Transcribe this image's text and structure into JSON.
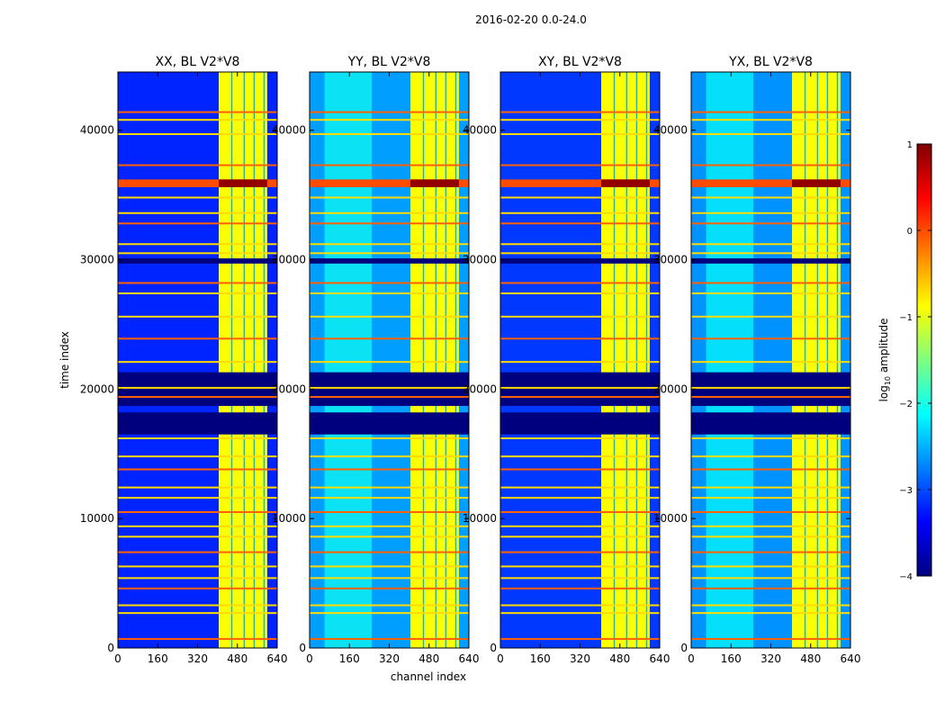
{
  "figure_title": "2016-02-20 0.0-24.0",
  "chart_data": {
    "type": "heatmap",
    "suptitle": "2016-02-20 0.0-24.0",
    "shared_xlabel": "channel index",
    "shared_ylabel": "time index",
    "xlim": [
      0,
      640
    ],
    "ylim": [
      0,
      44500
    ],
    "xticks": [
      0,
      160,
      320,
      480,
      640
    ],
    "yticks": [
      0,
      10000,
      20000,
      30000,
      40000
    ],
    "panels": [
      {
        "title": "XX, BL V2*V8",
        "pol": "XX"
      },
      {
        "title": "YY, BL V2*V8",
        "pol": "YY"
      },
      {
        "title": "XY, BL V2*V8",
        "pol": "XY"
      },
      {
        "title": "YX, BL V2*V8",
        "pol": "YX"
      }
    ],
    "colorbar": {
      "label_prefix": "log",
      "label_sub": "10",
      "label_suffix": " amplitude",
      "range": [
        -4,
        1
      ],
      "ticks": [
        -4,
        -3,
        -2,
        -1,
        0,
        1
      ],
      "colormap": "jet"
    },
    "colormap_colors": [
      "#00007f",
      "#0000ff",
      "#007fff",
      "#00ffff",
      "#7fff7f",
      "#ffff00",
      "#ff7f00",
      "#ff0000",
      "#7f0000"
    ],
    "features": {
      "bright_channel_band": [
        405,
        600
      ],
      "band_gaps_channels": [
        [
          455,
          460
        ],
        [
          505,
          510
        ],
        [
          545,
          550
        ],
        [
          585,
          590
        ]
      ],
      "dark_time_ranges": [
        [
          16500,
          18200
        ],
        [
          18700,
          21300
        ],
        [
          29700,
          30100
        ]
      ],
      "saturated_time_ranges": [
        [
          35600,
          36200
        ]
      ],
      "rfi_time_rows": [
        700,
        2700,
        3300,
        4600,
        5400,
        6300,
        7400,
        8600,
        9400,
        10500,
        11600,
        12400,
        13800,
        14800,
        16200,
        19400,
        20100,
        22100,
        23900,
        25600,
        27400,
        28200,
        30500,
        31200,
        32800,
        33600,
        34800,
        37300,
        39700,
        40800,
        41400
      ]
    }
  }
}
